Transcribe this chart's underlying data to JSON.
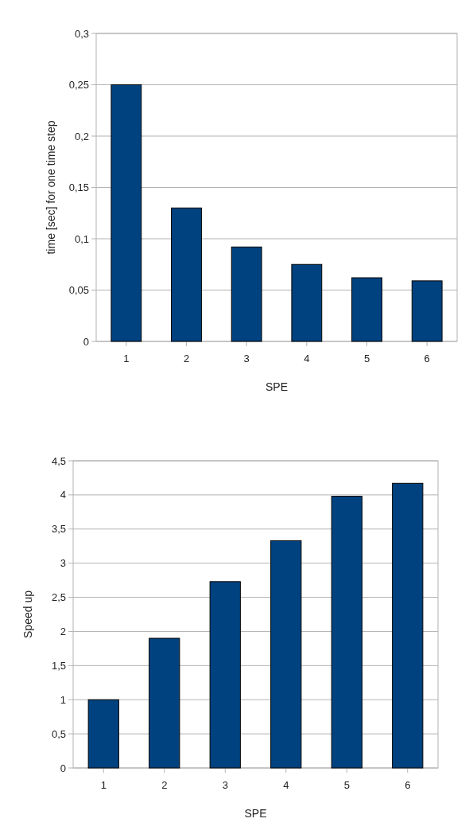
{
  "chart_data": [
    {
      "type": "bar",
      "xlabel": "SPE",
      "ylabel": "time [sec] for one time  step",
      "categories": [
        "1",
        "2",
        "3",
        "4",
        "5",
        "6"
      ],
      "values": [
        0.25,
        0.13,
        0.092,
        0.075,
        0.062,
        0.059
      ],
      "color": "#00427f",
      "ylim": [
        0,
        0.3
      ],
      "yticks": [
        0,
        {
          "value": 0.05,
          "label": "0,05"
        },
        {
          "value": 0.1,
          "label": "0,1"
        },
        {
          "value": 0.15,
          "label": "0,15"
        },
        {
          "value": 0.2,
          "label": "0,2"
        },
        {
          "value": 0.25,
          "label": "0,25"
        },
        {
          "value": 0.3,
          "label": "0,3"
        }
      ],
      "grid": "y"
    },
    {
      "type": "bar",
      "xlabel": "SPE",
      "ylabel": "Speed up",
      "categories": [
        "1",
        "2",
        "3",
        "4",
        "5",
        "6"
      ],
      "values": [
        1.0,
        1.9,
        2.73,
        3.33,
        3.98,
        4.17
      ],
      "color": "#00427f",
      "ylim": [
        0,
        4.5
      ],
      "yticks": [
        0,
        {
          "value": 0.5,
          "label": "0,5"
        },
        1,
        {
          "value": 1.5,
          "label": "1,5"
        },
        2,
        {
          "value": 2.5,
          "label": "2,5"
        },
        3,
        {
          "value": 3.5,
          "label": "3,5"
        },
        4,
        {
          "value": 4.5,
          "label": "4,5"
        }
      ],
      "grid": "y"
    }
  ]
}
